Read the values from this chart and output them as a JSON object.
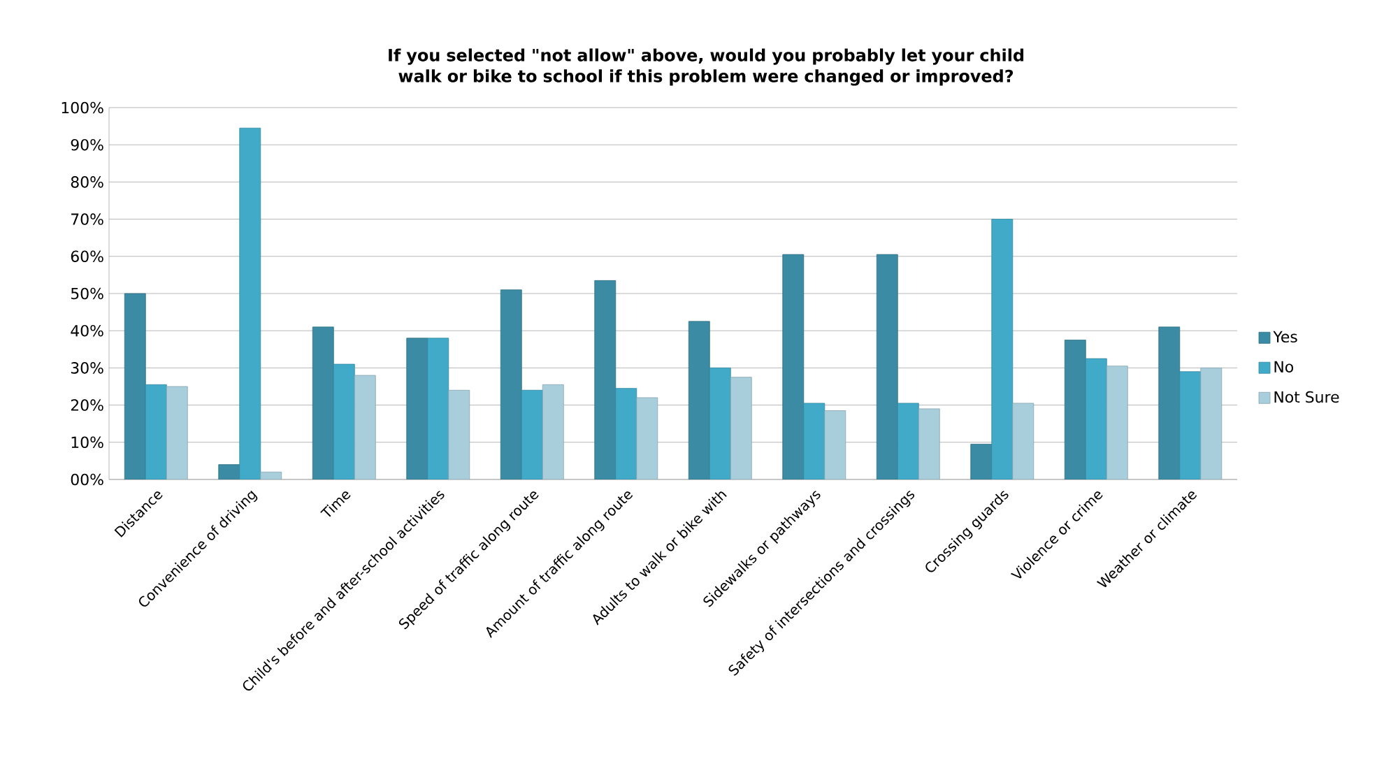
{
  "chart_data": {
    "type": "bar",
    "title": "If you selected \"not allow\" above, would you probably let your child walk or bike to school if this problem were changed or improved?",
    "categories": [
      "Distance",
      "Convenience of driving",
      "Time",
      "Child's before and after-school activities",
      "Speed of traffic along route",
      "Amount of traffic along route",
      "Adults to walk or bike with",
      "Sidewalks or pathways",
      "Safety of intersections and crossings",
      "Crossing guards",
      "Violence or crime",
      "Weather or climate"
    ],
    "series": [
      {
        "name": "Yes",
        "color": "#3a8ba3",
        "values": [
          50,
          4,
          41,
          38,
          51,
          53.5,
          42.5,
          60.5,
          60.5,
          9.5,
          37.5,
          41
        ]
      },
      {
        "name": "No",
        "color": "#41aac8",
        "values": [
          25.5,
          94.5,
          31,
          38,
          24,
          24.5,
          30,
          20.5,
          20.5,
          70,
          32.5,
          29
        ]
      },
      {
        "name": "Not Sure",
        "color": "#a9cedb",
        "values": [
          25,
          2,
          28,
          24,
          25.5,
          22,
          27.5,
          18.5,
          19,
          20.5,
          30.5,
          30
        ]
      }
    ],
    "ylim": [
      0,
      100
    ],
    "yticks": [
      {
        "value": 0,
        "label": "00%"
      },
      {
        "value": 10,
        "label": "10%"
      },
      {
        "value": 20,
        "label": "20%"
      },
      {
        "value": 30,
        "label": "30%"
      },
      {
        "value": 40,
        "label": "40%"
      },
      {
        "value": 50,
        "label": "50%"
      },
      {
        "value": 60,
        "label": "60%"
      },
      {
        "value": 70,
        "label": "70%"
      },
      {
        "value": 80,
        "label": "80%"
      },
      {
        "value": 90,
        "label": "90%"
      },
      {
        "value": 100,
        "label": "100%"
      }
    ],
    "grid": "y",
    "legend": "right"
  }
}
